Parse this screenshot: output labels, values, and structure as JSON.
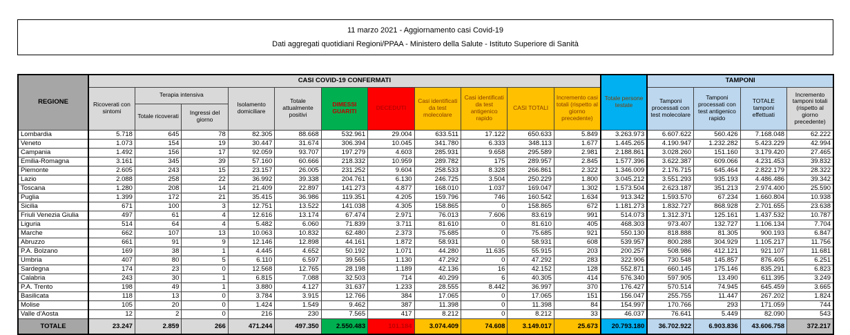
{
  "title": {
    "line1": "11 marzo 2021 - Aggiornamento casi Covid-19",
    "line2": "Dati aggregati quotidiani Regioni/PPAA - Ministero della Salute - Istituto Superiore di Sanità"
  },
  "table": {
    "region_header": "REGIONE",
    "group_casi": "CASI COVID-19 CONFERMATI",
    "group_tamponi": "TAMPONI",
    "terapia_intensiva": "Terapia intensiva",
    "columns": [
      "Ricoverati con sintomi",
      "Totale ricoverati",
      "Ingressi del giorno",
      "Isolamento domiciliare",
      "Totale attualmente positivi",
      "DIMESSI GUARITI",
      "DECEDUTI",
      "Casi identificati da test molecolare",
      "Casi identificati da test antigenico rapido",
      "CASI TOTALI",
      "Incremento casi totali (rispetto al giorno precedente)",
      "Totale persone testate",
      "Tamponi processati con test molecolare",
      "Tamponi processati con test antigenico rapido",
      "TOTALE tamponi effettuati",
      "Incremento tamponi totali (rispetto al giorno precedente)"
    ],
    "rows": [
      {
        "region": "Lombardia",
        "values": [
          "5.718",
          "645",
          "78",
          "82.305",
          "88.668",
          "532.961",
          "29.004",
          "633.511",
          "17.122",
          "650.633",
          "5.849",
          "3.263.973",
          "6.607.622",
          "560.426",
          "7.168.048",
          "62.222"
        ]
      },
      {
        "region": "Veneto",
        "values": [
          "1.073",
          "154",
          "19",
          "30.447",
          "31.674",
          "306.394",
          "10.045",
          "341.780",
          "6.333",
          "348.113",
          "1.677",
          "1.445.265",
          "4.190.947",
          "1.232.282",
          "5.423.229",
          "42.994"
        ]
      },
      {
        "region": "Campania",
        "values": [
          "1.492",
          "156",
          "17",
          "92.059",
          "93.707",
          "197.279",
          "4.603",
          "285.931",
          "9.658",
          "295.589",
          "2.981",
          "2.188.861",
          "3.028.260",
          "151.160",
          "3.179.420",
          "27.465"
        ]
      },
      {
        "region": "Emilia-Romagna",
        "values": [
          "3.161",
          "345",
          "39",
          "57.160",
          "60.666",
          "218.332",
          "10.959",
          "289.782",
          "175",
          "289.957",
          "2.845",
          "1.577.396",
          "3.622.387",
          "609.066",
          "4.231.453",
          "39.832"
        ]
      },
      {
        "region": "Piemonte",
        "values": [
          "2.605",
          "243",
          "15",
          "23.157",
          "26.005",
          "231.252",
          "9.604",
          "258.533",
          "8.328",
          "266.861",
          "2.322",
          "1.346.009",
          "2.176.715",
          "645.464",
          "2.822.179",
          "28.322"
        ]
      },
      {
        "region": "Lazio",
        "values": [
          "2.088",
          "258",
          "22",
          "36.992",
          "39.338",
          "204.761",
          "6.130",
          "246.725",
          "3.504",
          "250.229",
          "1.800",
          "3.045.212",
          "3.551.293",
          "935.193",
          "4.486.486",
          "39.342"
        ]
      },
      {
        "region": "Toscana",
        "values": [
          "1.280",
          "208",
          "14",
          "21.409",
          "22.897",
          "141.273",
          "4.877",
          "168.010",
          "1.037",
          "169.047",
          "1.302",
          "1.573.504",
          "2.623.187",
          "351.213",
          "2.974.400",
          "25.590"
        ]
      },
      {
        "region": "Puglia",
        "values": [
          "1.399",
          "172",
          "21",
          "35.415",
          "36.986",
          "119.351",
          "4.205",
          "159.796",
          "746",
          "160.542",
          "1.634",
          "913.342",
          "1.593.570",
          "67.234",
          "1.660.804",
          "10.938"
        ]
      },
      {
        "region": "Sicilia",
        "values": [
          "671",
          "100",
          "3",
          "12.751",
          "13.522",
          "141.038",
          "4.305",
          "158.865",
          "0",
          "158.865",
          "672",
          "1.181.273",
          "1.832.727",
          "868.928",
          "2.701.655",
          "23.638"
        ]
      },
      {
        "region": "Friuli Venezia Giulia",
        "values": [
          "497",
          "61",
          "4",
          "12.616",
          "13.174",
          "67.474",
          "2.971",
          "76.013",
          "7.606",
          "83.619",
          "991",
          "514.073",
          "1.312.371",
          "125.161",
          "1.437.532",
          "10.787"
        ]
      },
      {
        "region": "Liguria",
        "values": [
          "514",
          "64",
          "4",
          "5.482",
          "6.060",
          "71.839",
          "3.711",
          "81.610",
          "0",
          "81.610",
          "405",
          "468.303",
          "973.407",
          "132.727",
          "1.106.134",
          "7.704"
        ]
      },
      {
        "region": "Marche",
        "values": [
          "662",
          "107",
          "13",
          "10.063",
          "10.832",
          "62.480",
          "2.373",
          "75.685",
          "0",
          "75.685",
          "921",
          "550.130",
          "818.888",
          "81.305",
          "900.193",
          "6.847"
        ]
      },
      {
        "region": "Abruzzo",
        "values": [
          "661",
          "91",
          "9",
          "12.146",
          "12.898",
          "44.161",
          "1.872",
          "58.931",
          "0",
          "58.931",
          "608",
          "539.957",
          "800.288",
          "304.929",
          "1.105.217",
          "11.756"
        ]
      },
      {
        "region": "P.A. Bolzano",
        "values": [
          "169",
          "38",
          "1",
          "4.445",
          "4.652",
          "50.192",
          "1.071",
          "44.280",
          "11.635",
          "55.915",
          "203",
          "200.257",
          "508.986",
          "412.121",
          "921.107",
          "11.681"
        ]
      },
      {
        "region": "Umbria",
        "values": [
          "407",
          "80",
          "5",
          "6.110",
          "6.597",
          "39.565",
          "1.130",
          "47.292",
          "0",
          "47.292",
          "283",
          "322.906",
          "730.548",
          "145.857",
          "876.405",
          "6.251"
        ]
      },
      {
        "region": "Sardegna",
        "values": [
          "174",
          "23",
          "0",
          "12.568",
          "12.765",
          "28.198",
          "1.189",
          "42.136",
          "16",
          "42.152",
          "128",
          "552.871",
          "660.145",
          "175.146",
          "835.291",
          "6.823"
        ]
      },
      {
        "region": "Calabria",
        "values": [
          "243",
          "30",
          "1",
          "6.815",
          "7.088",
          "32.503",
          "714",
          "40.299",
          "6",
          "40.305",
          "414",
          "576.340",
          "597.905",
          "13.490",
          "611.395",
          "3.249"
        ]
      },
      {
        "region": "P.A. Trento",
        "values": [
          "198",
          "49",
          "1",
          "3.880",
          "4.127",
          "31.637",
          "1.233",
          "28.555",
          "8.442",
          "36.997",
          "370",
          "176.427",
          "570.514",
          "74.945",
          "645.459",
          "3.665"
        ]
      },
      {
        "region": "Basilicata",
        "values": [
          "118",
          "13",
          "0",
          "3.784",
          "3.915",
          "12.766",
          "384",
          "17.065",
          "0",
          "17.065",
          "151",
          "156.047",
          "255.755",
          "11.447",
          "267.202",
          "1.824"
        ]
      },
      {
        "region": "Molise",
        "values": [
          "105",
          "20",
          "0",
          "1.424",
          "1.549",
          "9.462",
          "387",
          "11.398",
          "0",
          "11.398",
          "84",
          "154.997",
          "170.766",
          "293",
          "171.059",
          "744"
        ]
      },
      {
        "region": "Valle d'Aosta",
        "values": [
          "12",
          "2",
          "0",
          "216",
          "230",
          "7.565",
          "417",
          "8.212",
          "0",
          "8.212",
          "33",
          "46.037",
          "76.641",
          "5.449",
          "82.090",
          "543"
        ]
      }
    ],
    "total": {
      "label": "TOTALE",
      "values": [
        "23.247",
        "2.859",
        "266",
        "471.244",
        "497.350",
        "2.550.483",
        "101.184",
        "3.074.409",
        "74.608",
        "3.149.017",
        "25.673",
        "20.793.180",
        "36.702.922",
        "6.903.836",
        "43.606.758",
        "372.217"
      ]
    }
  },
  "colors": {
    "header_gray": "#a6a6a6",
    "subheader_gray": "#d9d9d9",
    "green": "#00b050",
    "red": "#ff0000",
    "yellow": "#ffc000",
    "cyan": "#00b0f0",
    "light_blue": "#bdd7ee",
    "total_light_gray": "#d9d9d9",
    "total_dark_gray": "#bfbfbf",
    "dark_red_text": "#c00000",
    "brown_header_text": "#833c00"
  }
}
